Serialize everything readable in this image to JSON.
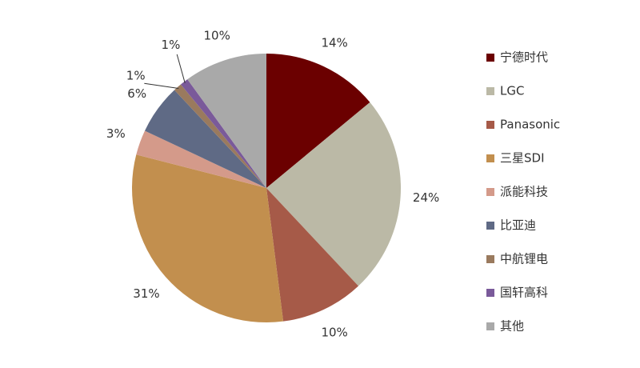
{
  "chart_data": {
    "type": "pie",
    "categories": [
      "宁德时代",
      "LGC",
      "Panasonic",
      "三星SDI",
      "派能科技",
      "比亚迪",
      "中航锂电",
      "国轩高科",
      "其他"
    ],
    "values": [
      14,
      24,
      10,
      31,
      3,
      6,
      1,
      1,
      10
    ],
    "value_labels": [
      "14%",
      "24%",
      "10%",
      "31%",
      "3%",
      "6%",
      "1%",
      "1%",
      "10%"
    ],
    "colors": [
      "#6b0000",
      "#bbb9a6",
      "#a65a48",
      "#c28f4e",
      "#d49a8a",
      "#5f6a85",
      "#9a7a5e",
      "#7a5a9a",
      "#a9a9a9"
    ],
    "legend": "right"
  }
}
